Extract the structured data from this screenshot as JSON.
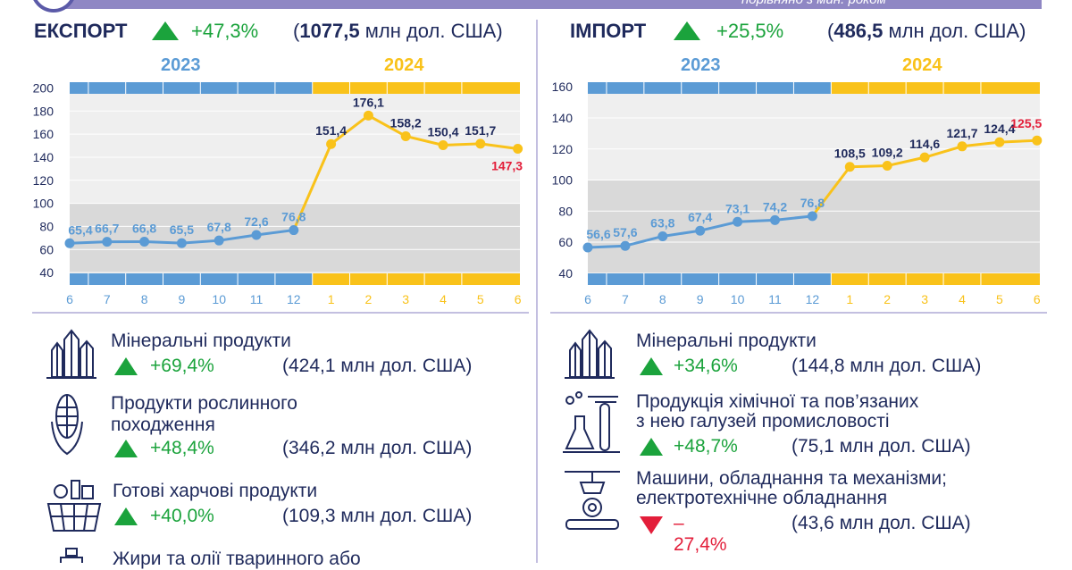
{
  "banner": {
    "subtitle": "порівняно з мин. роком"
  },
  "export": {
    "title": "ЕКСПОРТ",
    "change": "+47,3%",
    "total_value": "1077,5",
    "total_unit": " млн дол. США)",
    "open_paren": "(",
    "year_2023": "2023",
    "year_2024": "2024",
    "items": [
      {
        "name_lines": [
          "Мінеральні продукти"
        ],
        "change": "+69,4%",
        "direction": "up",
        "value": "(424,1 млн дол. США)",
        "icon": "crystals-icon"
      },
      {
        "name_lines": [
          "Продукти рослинного",
          "походження"
        ],
        "change": "+48,4%",
        "direction": "up",
        "value": "(346,2 млн дол. США)",
        "icon": "corn-icon"
      },
      {
        "name_lines": [
          "Готові харчові продукти"
        ],
        "change": "+40,0%",
        "direction": "up",
        "value": "(109,3 млн дол. США)",
        "icon": "food-basket-icon"
      },
      {
        "name_lines": [
          "Жири та олії тваринного або"
        ],
        "change": "",
        "direction": "",
        "value": "",
        "icon": "oil-bottle-icon"
      }
    ]
  },
  "import": {
    "title": "ІМПОРТ",
    "change": "+25,5%",
    "total_value": "486,5",
    "total_unit": " млн дол. США)",
    "open_paren": "(",
    "year_2023": "2023",
    "year_2024": "2024",
    "items": [
      {
        "name_lines": [
          "Мінеральні продукти"
        ],
        "change": "+34,6%",
        "direction": "up",
        "value": "(144,8 млн дол. США)",
        "icon": "crystals-icon"
      },
      {
        "name_lines": [
          "Продукція хімічної та пов’язаних",
          "з нею галузей промисловості"
        ],
        "change": "+48,7%",
        "direction": "up",
        "value": "(75,1 млн дол. США)",
        "icon": "lab-flasks-icon"
      },
      {
        "name_lines": [
          "Машини, обладнання та механізми;",
          "електротехнічне обладнання"
        ],
        "change": "–27,4%",
        "direction": "down",
        "value": "(43,6 млн дол. США)",
        "icon": "machinery-icon"
      }
    ]
  },
  "colors": {
    "navy": "#1f2a5c",
    "blue": "#5b9bd5",
    "gold": "#f9c21a",
    "green": "#1ba33c",
    "red": "#e31e3a",
    "plot_top_bg": "#efefef",
    "plot_bottom_bg": "#d9d9d9"
  },
  "chart_data": [
    {
      "type": "line",
      "x": [
        "6",
        "7",
        "8",
        "9",
        "10",
        "11",
        "12",
        "1",
        "2",
        "3",
        "4",
        "5",
        "6"
      ],
      "values": [
        65.4,
        66.7,
        66.8,
        65.5,
        67.8,
        72.6,
        76.8,
        151.4,
        176.1,
        158.2,
        150.4,
        151.7,
        147.3
      ],
      "labels": [
        "65,4",
        "66,7",
        "66,8",
        "65,5",
        "67,8",
        "72,6",
        "76,8",
        "151,4",
        "176,1",
        "158,2",
        "150,4",
        "151,7",
        "147,3"
      ],
      "highlight_last": true,
      "year_split_index": 7,
      "ylim": [
        30,
        205
      ],
      "yticks": [
        40,
        60,
        80,
        100,
        120,
        140,
        160,
        180,
        200
      ],
      "shade_below": 100,
      "grid": true
    },
    {
      "type": "line",
      "x": [
        "6",
        "7",
        "8",
        "9",
        "10",
        "11",
        "12",
        "1",
        "2",
        "3",
        "4",
        "5",
        "6"
      ],
      "values": [
        56.6,
        57.6,
        63.8,
        67.4,
        73.1,
        74.2,
        76.8,
        108.5,
        109.2,
        114.6,
        121.7,
        124.4,
        125.5
      ],
      "labels": [
        "56,6",
        "57,6",
        "63,8",
        "67,4",
        "73,1",
        "74,2",
        "76,8",
        "108,5",
        "109,2",
        "114,6",
        "121,7",
        "124,4",
        "125,5"
      ],
      "highlight_last": true,
      "year_split_index": 7,
      "ylim": [
        33,
        163
      ],
      "yticks": [
        40,
        60,
        80,
        100,
        120,
        140,
        160
      ],
      "shade_below": 100,
      "grid": true
    }
  ]
}
